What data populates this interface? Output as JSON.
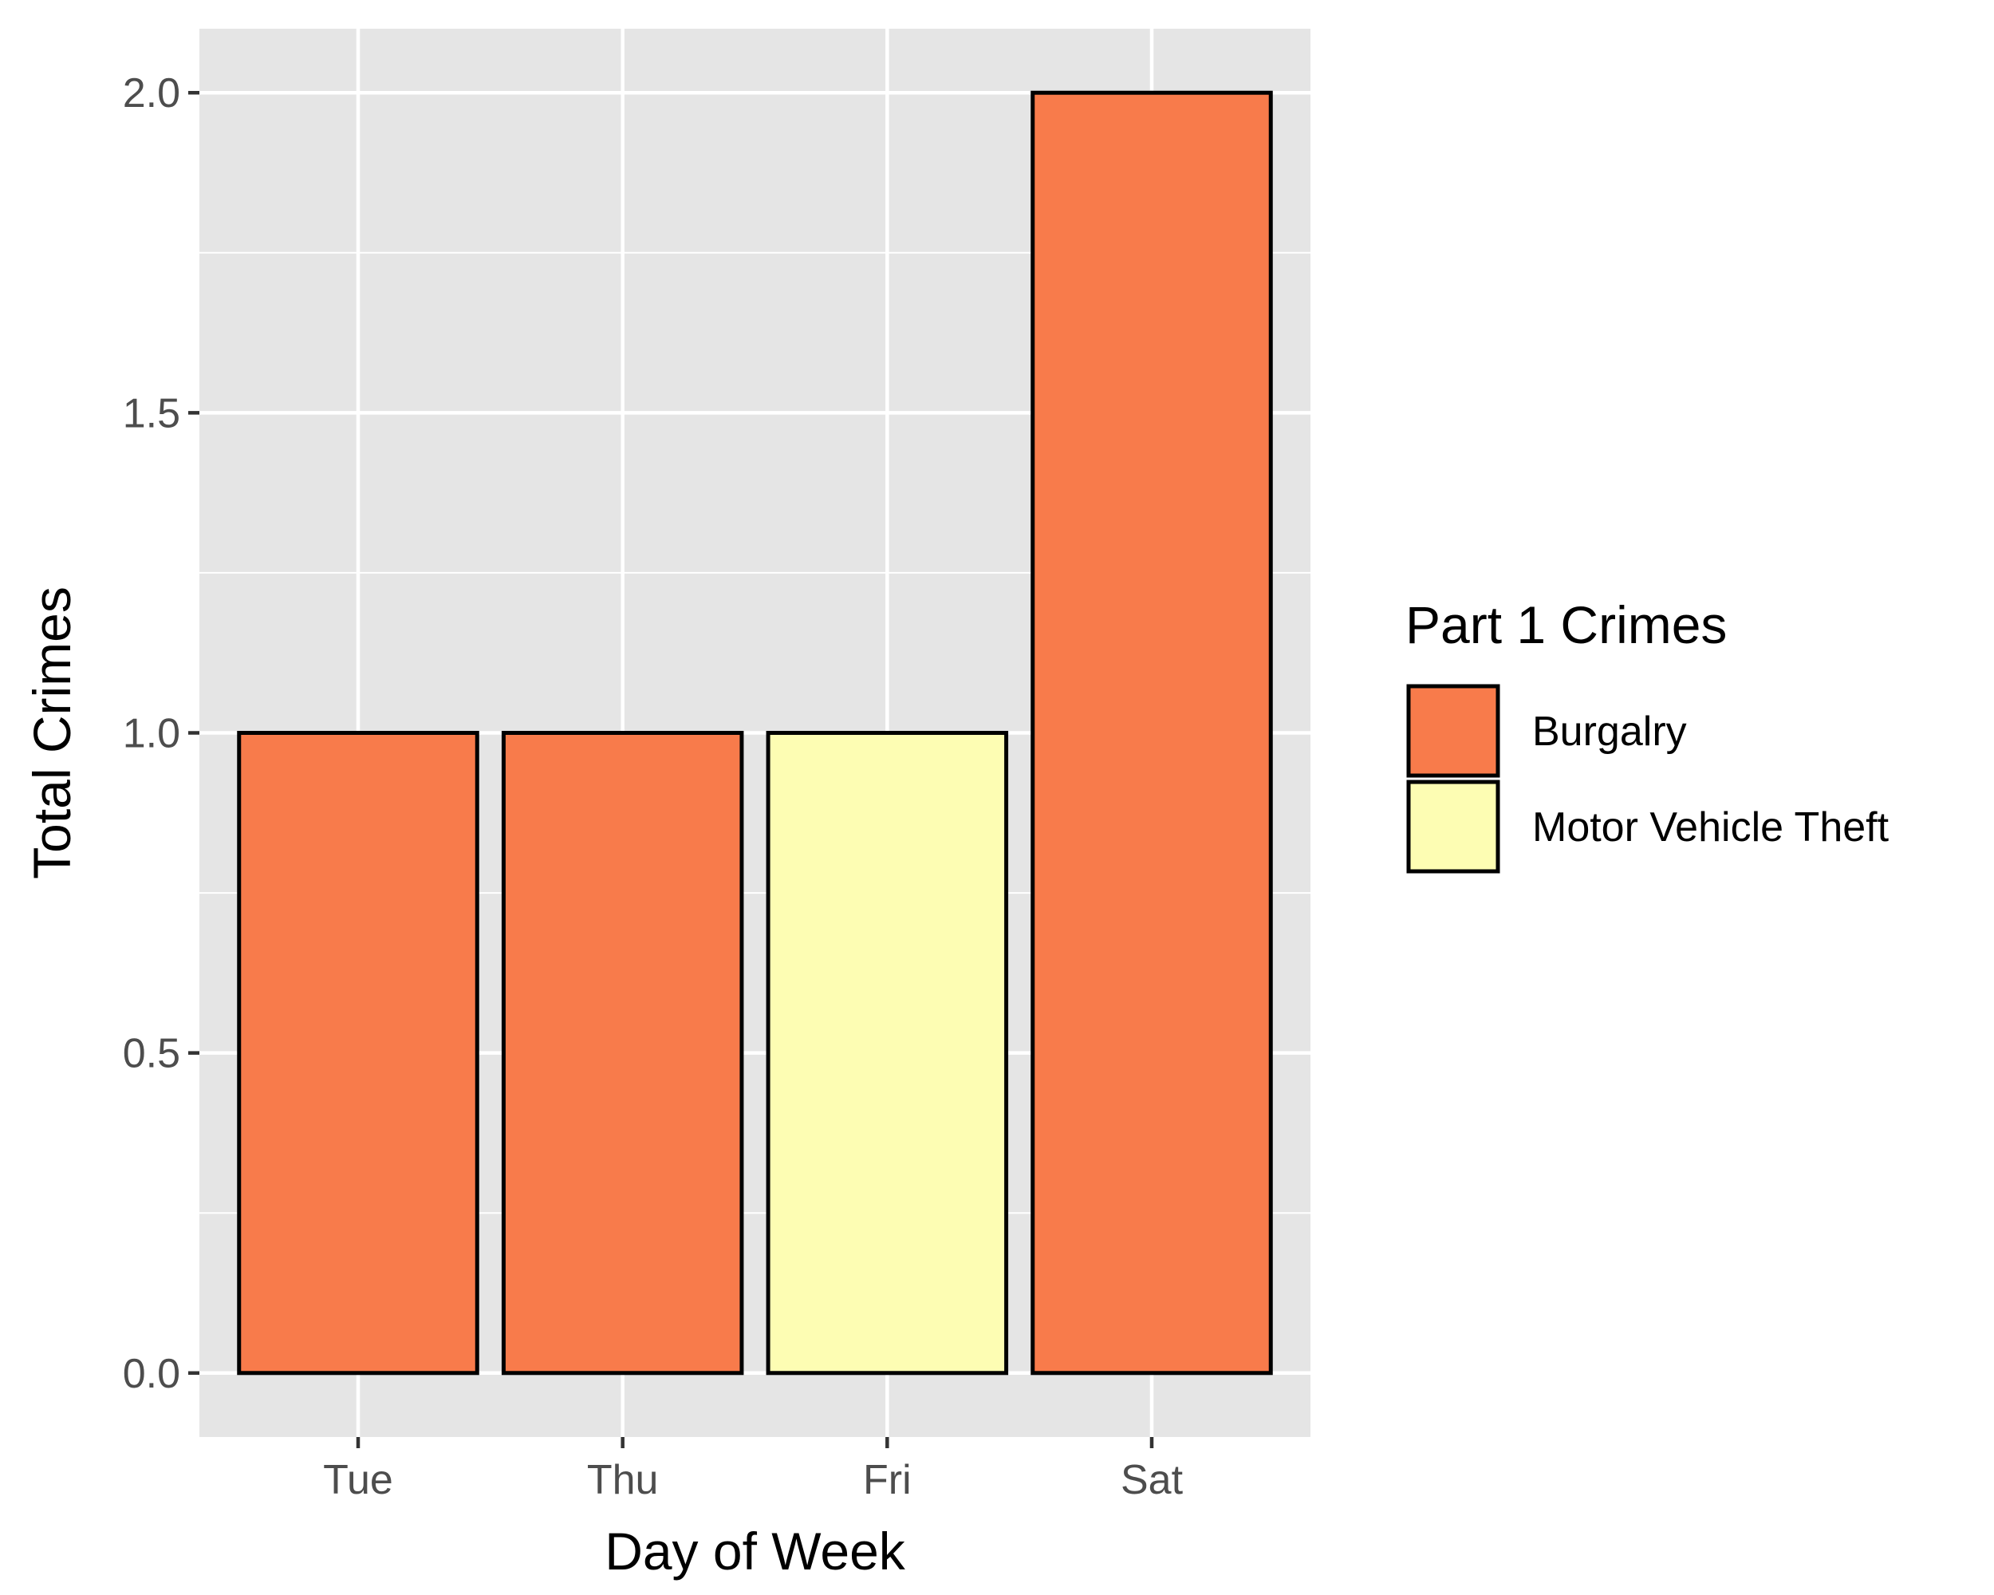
{
  "chart_data": {
    "type": "bar",
    "categories": [
      "Tue",
      "Thu",
      "Fri",
      "Sat"
    ],
    "values": [
      1,
      1,
      1,
      2
    ],
    "bar_fill_keys": [
      "Burgalry",
      "Burgalry",
      "Motor Vehicle Theft",
      "Burgalry"
    ],
    "title": "",
    "xlabel": "Day of Week",
    "ylabel": "Total Crimes",
    "ylim": [
      -0.1,
      2.1
    ],
    "y_ticks": [
      "0.0",
      "0.5",
      "1.0",
      "1.5",
      "2.0"
    ],
    "y_tick_values": [
      0,
      0.5,
      1.0,
      1.5,
      2.0
    ],
    "grid": true,
    "legend": {
      "title": "Part 1 Crimes",
      "position": "right",
      "entries": [
        {
          "label": "Burgalry",
          "color": "#f87b4b"
        },
        {
          "label": "Motor Vehicle Theft",
          "color": "#fdfdb3"
        }
      ]
    },
    "colors": {
      "panel_background": "#e5e5e5",
      "grid": "#ffffff",
      "bar_outline": "#000000"
    }
  }
}
